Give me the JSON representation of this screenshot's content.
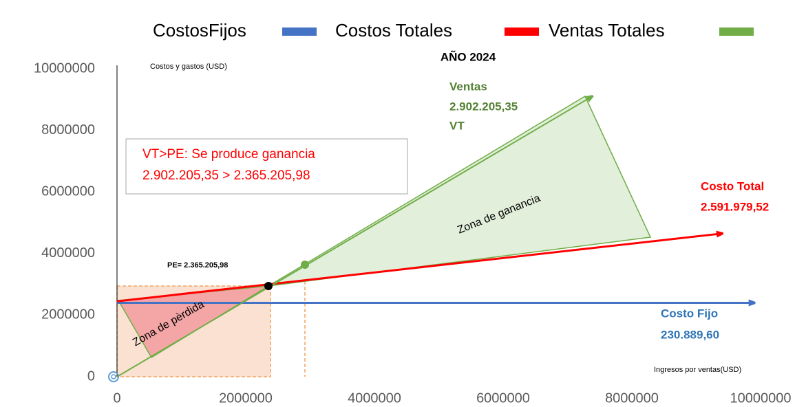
{
  "chart_data": {
    "type": "line",
    "title": "AÑO 2024",
    "y_label": "Costos y gastos (USD)",
    "x_label": "Ingresos por ventas(USD)",
    "xlim": [
      0,
      10000000
    ],
    "ylim": [
      0,
      10000000
    ],
    "xticks": [
      0,
      2000000,
      4000000,
      6000000,
      8000000,
      10000000
    ],
    "yticks": [
      0,
      2000000,
      4000000,
      6000000,
      8000000,
      10000000
    ],
    "grid": false,
    "legend": "top",
    "series": [
      {
        "name": "CostosFijos",
        "color": "#4472c4",
        "x": [
          0,
          9900000
        ],
        "values": [
          2400000,
          2400000
        ]
      },
      {
        "name": "Costos Totales",
        "color": "#ff0000",
        "x": [
          0,
          9400000
        ],
        "values": [
          2450000,
          4650000
        ]
      },
      {
        "name": "Ventas Totales",
        "color": "#70ad47",
        "x": [
          0,
          7380000
        ],
        "values": [
          0,
          9100000
        ]
      }
    ],
    "annotations": [
      "Ventas",
      "2.902.205,35",
      "VT",
      "VT>PE: Se produce ganancia",
      "2.902.205,35 > 2.365.205,98",
      "Costo Total",
      "2.591.979,52",
      "PE= 2.365.205,98",
      "Costo Fijo",
      "230.889,60",
      "Zona de ganancia",
      "Zona de pèrdida"
    ]
  }
}
